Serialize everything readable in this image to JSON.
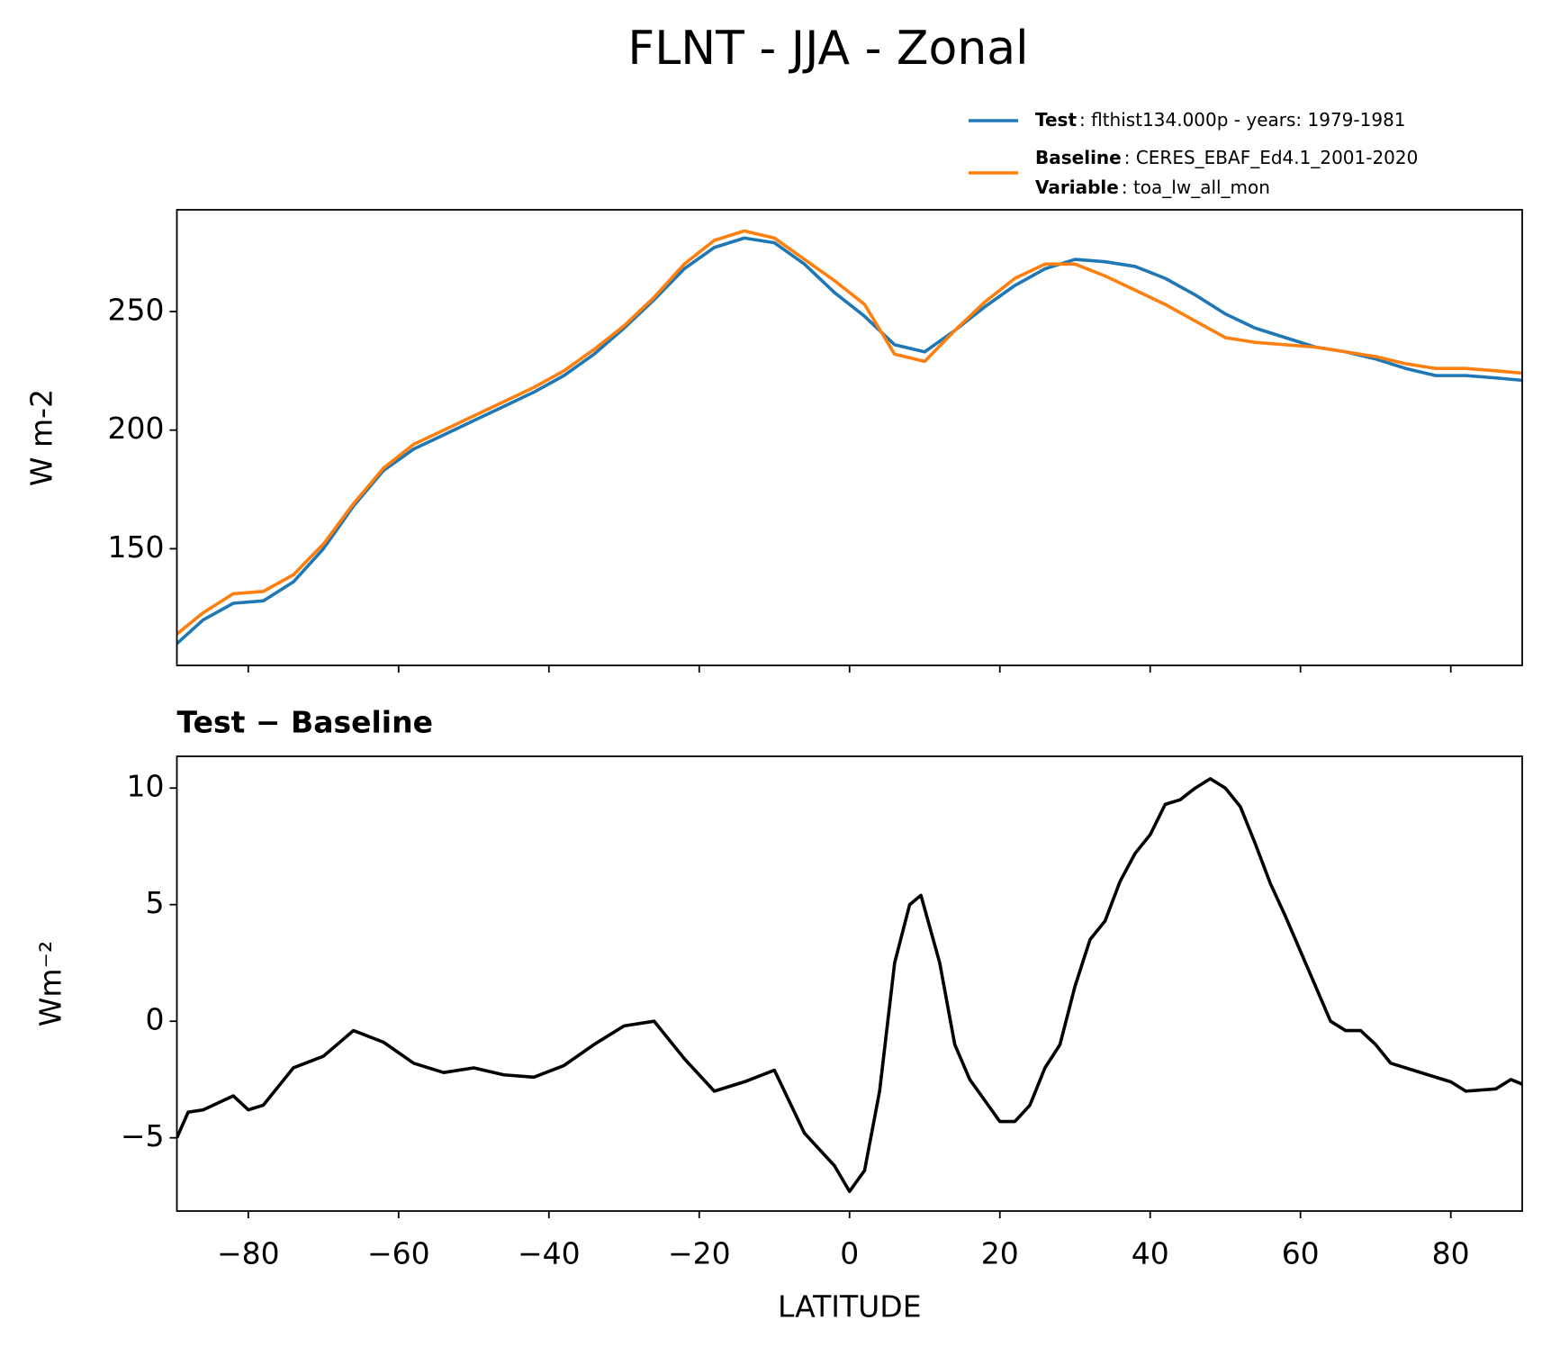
{
  "title": "FLNT - JJA - Zonal",
  "chart_data": [
    {
      "type": "line",
      "x": [
        -89.5,
        -86,
        -82,
        -78,
        -74,
        -70,
        -66,
        -62,
        -58,
        -54,
        -50,
        -46,
        -42,
        -38,
        -34,
        -30,
        -26,
        -22,
        -18,
        -14,
        -10,
        -6,
        -2,
        2,
        6,
        10,
        14,
        18,
        22,
        26,
        30,
        34,
        38,
        42,
        46,
        50,
        54,
        58,
        62,
        66,
        70,
        74,
        78,
        82,
        86,
        89.5
      ],
      "series": [
        {
          "name": "Test",
          "label": ": flthist134.000p - years: 1979-1981",
          "color": "#1f77b4",
          "values": [
            110,
            120,
            127,
            128,
            136,
            150,
            168,
            183,
            192,
            198,
            204,
            210,
            216,
            223,
            232,
            243,
            255,
            268,
            277,
            281,
            279,
            270,
            258,
            248,
            236,
            233,
            242,
            252,
            261,
            268,
            272,
            271,
            269,
            264,
            257,
            249,
            243,
            239,
            235,
            233,
            230,
            226,
            223,
            223,
            222,
            221
          ]
        },
        {
          "name": "Baseline",
          "label": ": CERES_EBAF_Ed4.1_2001-2020",
          "color": "#ff7f0e",
          "values": [
            114,
            123,
            131,
            132,
            139,
            152,
            169,
            184,
            194,
            200,
            206,
            212,
            218,
            225,
            234,
            244,
            256,
            270,
            280,
            284,
            281,
            272,
            263,
            253,
            232,
            229,
            242,
            254,
            264,
            270,
            270,
            265,
            259,
            253,
            246,
            239,
            237,
            236,
            235,
            233,
            231,
            228,
            226,
            226,
            225,
            224
          ]
        }
      ],
      "legend_note": {
        "name": "Variable",
        "label": ": toa_lw_all_mon"
      },
      "ylabel": "W m-2",
      "xlim": [
        -89.5,
        89.5
      ],
      "ylim": [
        100.8,
        292.9
      ],
      "xticks": [
        -80,
        -60,
        -40,
        -20,
        0,
        20,
        40,
        60,
        80
      ],
      "yticks": [
        150,
        200,
        250
      ]
    },
    {
      "type": "line",
      "title": "Test − Baseline",
      "x": [
        -89.5,
        -88,
        -86,
        -84,
        -82,
        -80,
        -78,
        -74,
        -70,
        -66,
        -62,
        -58,
        -54,
        -50,
        -46,
        -42,
        -38,
        -34,
        -30,
        -26,
        -22,
        -18,
        -14,
        -10,
        -6,
        -2,
        0,
        2,
        4,
        6,
        8,
        9.5,
        12,
        14,
        16,
        18,
        20,
        22,
        24,
        26,
        28,
        30,
        32,
        34,
        36,
        38,
        40,
        42,
        44,
        46,
        48,
        50,
        52,
        54,
        56,
        58,
        60,
        62,
        64,
        66,
        68,
        70,
        72,
        74,
        78,
        80,
        82,
        86,
        88,
        89.5
      ],
      "series": [
        {
          "name": "Test − Baseline",
          "color": "#000000",
          "values": [
            -5,
            -3.9,
            -3.8,
            -3.5,
            -3.2,
            -3.8,
            -3.6,
            -2,
            -1.5,
            -0.4,
            -0.9,
            -1.8,
            -2.2,
            -2,
            -2.3,
            -2.4,
            -1.9,
            -1,
            -0.2,
            0,
            -1.6,
            -3,
            -2.6,
            -2.1,
            -4.8,
            -6.2,
            -7.3,
            -6.4,
            -3,
            2.5,
            5,
            5.4,
            2.5,
            -1,
            -2.5,
            -3.4,
            -4.3,
            -4.3,
            -3.6,
            -2,
            -1,
            1.5,
            3.5,
            4.3,
            6,
            7.2,
            8,
            9.3,
            9.5,
            10,
            10.4,
            10,
            9.2,
            7.6,
            5.9,
            4.5,
            3,
            1.5,
            0,
            -0.4,
            -0.4,
            -1,
            -1.8,
            -2,
            -2.4,
            -2.6,
            -3,
            -2.9,
            -2.5,
            -2.7
          ]
        }
      ],
      "ylabel": "Wm⁻²",
      "xlabel": "LATITUDE",
      "xlim": [
        -89.5,
        89.5
      ],
      "ylim": [
        -8.14,
        11.36
      ],
      "xticks": [
        {
          "value": -80,
          "label": "−80"
        },
        {
          "value": -60,
          "label": "−60"
        },
        {
          "value": -40,
          "label": "−40"
        },
        {
          "value": -20,
          "label": "−20"
        },
        0,
        20,
        40,
        60,
        80
      ],
      "yticks": [
        {
          "value": -5,
          "label": "−5"
        },
        0,
        5,
        10
      ]
    }
  ]
}
